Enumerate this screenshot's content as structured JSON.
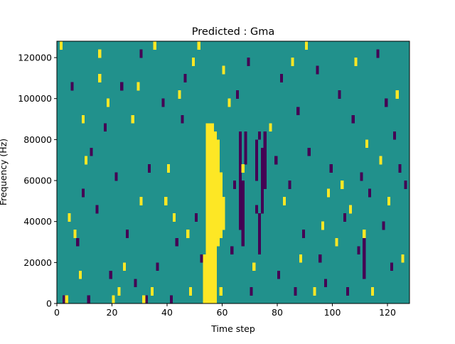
{
  "chart_data": {
    "type": "heatmap",
    "title": "Predicted : Gma",
    "xlabel": "Time step",
    "ylabel": "Frequency (Hz)",
    "xlim": [
      0,
      128
    ],
    "ylim": [
      0,
      128000
    ],
    "xticks": [
      0,
      20,
      40,
      60,
      80,
      100,
      120
    ],
    "xtick_labels": [
      "0",
      "20",
      "40",
      "60",
      "80",
      "100",
      "120"
    ],
    "yticks": [
      0,
      20000,
      40000,
      60000,
      80000,
      100000,
      120000
    ],
    "ytick_labels": [
      "0",
      "20000",
      "40000",
      "60000",
      "80000",
      "100000",
      "120000"
    ],
    "grid": false,
    "legend": "none",
    "colors": {
      "background": "#21918c",
      "high": "#fde725",
      "low": "#440154"
    },
    "cell_height_hz": 4000,
    "levels": {
      "low": -1,
      "mid": 0,
      "high": 1
    },
    "cells_high": [
      [
        1,
        124000
      ],
      [
        3,
        0
      ],
      [
        4,
        40000
      ],
      [
        6,
        32000
      ],
      [
        8,
        12000
      ],
      [
        9,
        88000
      ],
      [
        10,
        68000
      ],
      [
        15,
        108000
      ],
      [
        15,
        120000
      ],
      [
        18,
        96000
      ],
      [
        20,
        0
      ],
      [
        22,
        4000
      ],
      [
        24,
        16000
      ],
      [
        27,
        88000
      ],
      [
        29,
        104000
      ],
      [
        30,
        48000
      ],
      [
        31,
        0
      ],
      [
        34,
        4000
      ],
      [
        35,
        124000
      ],
      [
        39,
        48000
      ],
      [
        40,
        64000
      ],
      [
        42,
        40000
      ],
      [
        44,
        100000
      ],
      [
        47,
        32000
      ],
      [
        48,
        4000
      ],
      [
        49,
        116000
      ],
      [
        51,
        124000
      ],
      [
        59,
        4000
      ],
      [
        60,
        112000
      ],
      [
        62,
        96000
      ],
      [
        67,
        64000
      ],
      [
        71,
        16000
      ],
      [
        77,
        84000
      ],
      [
        82,
        48000
      ],
      [
        85,
        116000
      ],
      [
        88,
        20000
      ],
      [
        90,
        124000
      ],
      [
        93,
        4000
      ],
      [
        96,
        36000
      ],
      [
        98,
        52000
      ],
      [
        101,
        28000
      ],
      [
        103,
        56000
      ],
      [
        106,
        44000
      ],
      [
        108,
        116000
      ],
      [
        111,
        32000
      ],
      [
        112,
        76000
      ],
      [
        114,
        4000
      ],
      [
        117,
        68000
      ],
      [
        120,
        48000
      ],
      [
        123,
        100000
      ],
      [
        125,
        20000
      ]
    ],
    "cells_low": [
      [
        2,
        0
      ],
      [
        5,
        104000
      ],
      [
        7,
        28000
      ],
      [
        9,
        52000
      ],
      [
        11,
        0
      ],
      [
        12,
        72000
      ],
      [
        14,
        44000
      ],
      [
        17,
        84000
      ],
      [
        19,
        12000
      ],
      [
        21,
        60000
      ],
      [
        23,
        104000
      ],
      [
        25,
        32000
      ],
      [
        28,
        8000
      ],
      [
        30,
        120000
      ],
      [
        32,
        0
      ],
      [
        33,
        64000
      ],
      [
        36,
        16000
      ],
      [
        38,
        96000
      ],
      [
        41,
        0
      ],
      [
        43,
        28000
      ],
      [
        45,
        88000
      ],
      [
        46,
        108000
      ],
      [
        50,
        40000
      ],
      [
        52,
        20000
      ],
      [
        63,
        24000
      ],
      [
        64,
        56000
      ],
      [
        65,
        100000
      ],
      [
        69,
        116000
      ],
      [
        70,
        4000
      ],
      [
        72,
        44000
      ],
      [
        73,
        80000
      ],
      [
        79,
        68000
      ],
      [
        80,
        12000
      ],
      [
        81,
        108000
      ],
      [
        84,
        56000
      ],
      [
        86,
        4000
      ],
      [
        87,
        92000
      ],
      [
        89,
        32000
      ],
      [
        91,
        72000
      ],
      [
        94,
        112000
      ],
      [
        95,
        20000
      ],
      [
        97,
        8000
      ],
      [
        99,
        64000
      ],
      [
        102,
        100000
      ],
      [
        104,
        40000
      ],
      [
        105,
        4000
      ],
      [
        107,
        88000
      ],
      [
        109,
        24000
      ],
      [
        110,
        60000
      ],
      [
        113,
        52000
      ],
      [
        116,
        120000
      ],
      [
        118,
        36000
      ],
      [
        119,
        96000
      ],
      [
        121,
        16000
      ],
      [
        122,
        80000
      ],
      [
        124,
        64000
      ],
      [
        126,
        56000
      ]
    ],
    "bands_high": [
      {
        "x": 53,
        "y_from": 0,
        "y_to": 20000
      },
      {
        "x": 54,
        "y_from": 0,
        "y_to": 84000
      },
      {
        "x": 55,
        "y_from": 0,
        "y_to": 84000
      },
      {
        "x": 56,
        "y_from": 0,
        "y_to": 84000
      },
      {
        "x": 57,
        "y_from": 0,
        "y_to": 80000
      },
      {
        "x": 58,
        "y_from": 28000,
        "y_to": 76000
      },
      {
        "x": 59,
        "y_from": 32000,
        "y_to": 60000
      },
      {
        "x": 60,
        "y_from": 36000,
        "y_to": 48000
      }
    ],
    "bands_low": [
      {
        "x": 66,
        "y_from": 36000,
        "y_to": 80000
      },
      {
        "x": 67,
        "y_from": 28000,
        "y_to": 56000
      },
      {
        "x": 68,
        "y_from": 68000,
        "y_to": 80000
      },
      {
        "x": 72,
        "y_from": 60000,
        "y_to": 76000
      },
      {
        "x": 73,
        "y_from": 24000,
        "y_to": 40000
      },
      {
        "x": 74,
        "y_from": 44000,
        "y_to": 72000
      },
      {
        "x": 75,
        "y_from": 56000,
        "y_to": 80000
      },
      {
        "x": 111,
        "y_from": 12000,
        "y_to": 32000
      }
    ]
  }
}
